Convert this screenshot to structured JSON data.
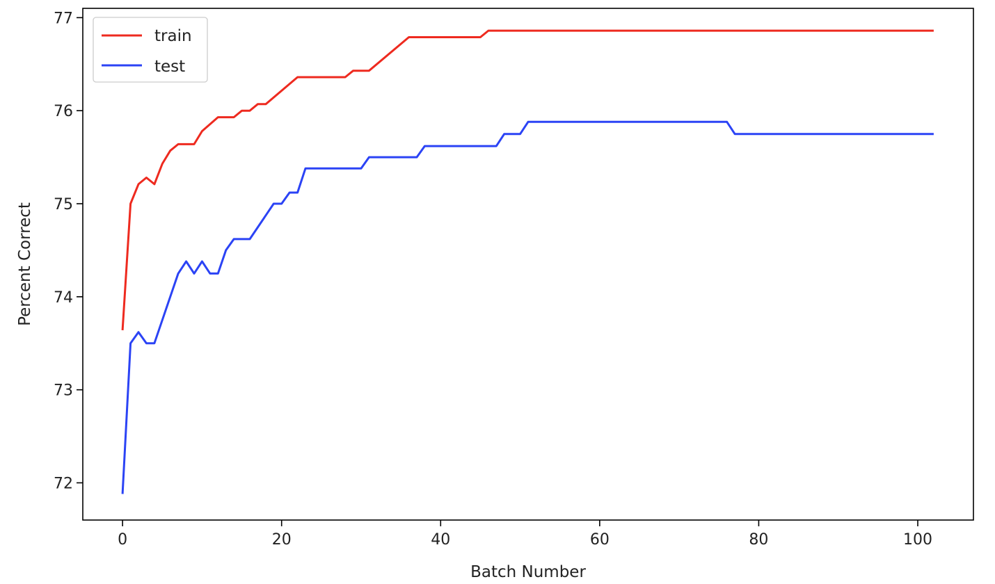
{
  "chart_data": {
    "type": "line",
    "xlabel": "Batch Number",
    "ylabel": "Percent Correct",
    "xlim": [
      -5,
      107
    ],
    "ylim": [
      71.6,
      77.1
    ],
    "xticks": [
      0,
      20,
      40,
      60,
      80,
      100
    ],
    "yticks": [
      72,
      73,
      74,
      75,
      76,
      77
    ],
    "grid": false,
    "legend_position": "top-left",
    "series": [
      {
        "name": "train",
        "color": "#ee2a1f",
        "points": [
          [
            0,
            73.64
          ],
          [
            1,
            75.0
          ],
          [
            2,
            75.21
          ],
          [
            3,
            75.28
          ],
          [
            4,
            75.21
          ],
          [
            5,
            75.43
          ],
          [
            6,
            75.57
          ],
          [
            7,
            75.64
          ],
          [
            9,
            75.64
          ],
          [
            10,
            75.78
          ],
          [
            12,
            75.93
          ],
          [
            14,
            75.93
          ],
          [
            15,
            76.0
          ],
          [
            16,
            76.0
          ],
          [
            17,
            76.07
          ],
          [
            18,
            76.07
          ],
          [
            22,
            76.36
          ],
          [
            28,
            76.36
          ],
          [
            29,
            76.43
          ],
          [
            31,
            76.43
          ],
          [
            36,
            76.79
          ],
          [
            45,
            76.79
          ],
          [
            46,
            76.86
          ],
          [
            102,
            76.86
          ]
        ]
      },
      {
        "name": "test",
        "color": "#2b43f5",
        "points": [
          [
            0,
            71.88
          ],
          [
            1,
            73.5
          ],
          [
            2,
            73.62
          ],
          [
            3,
            73.5
          ],
          [
            4,
            73.5
          ],
          [
            7,
            74.25
          ],
          [
            8,
            74.38
          ],
          [
            9,
            74.25
          ],
          [
            10,
            74.38
          ],
          [
            11,
            74.25
          ],
          [
            12,
            74.25
          ],
          [
            13,
            74.5
          ],
          [
            14,
            74.62
          ],
          [
            16,
            74.62
          ],
          [
            19,
            75.0
          ],
          [
            20,
            75.0
          ],
          [
            21,
            75.12
          ],
          [
            22,
            75.12
          ],
          [
            23,
            75.38
          ],
          [
            30,
            75.38
          ],
          [
            31,
            75.5
          ],
          [
            37,
            75.5
          ],
          [
            38,
            75.62
          ],
          [
            47,
            75.62
          ],
          [
            48,
            75.75
          ],
          [
            50,
            75.75
          ],
          [
            51,
            75.88
          ],
          [
            76,
            75.88
          ],
          [
            77,
            75.75
          ],
          [
            102,
            75.75
          ]
        ]
      }
    ]
  }
}
